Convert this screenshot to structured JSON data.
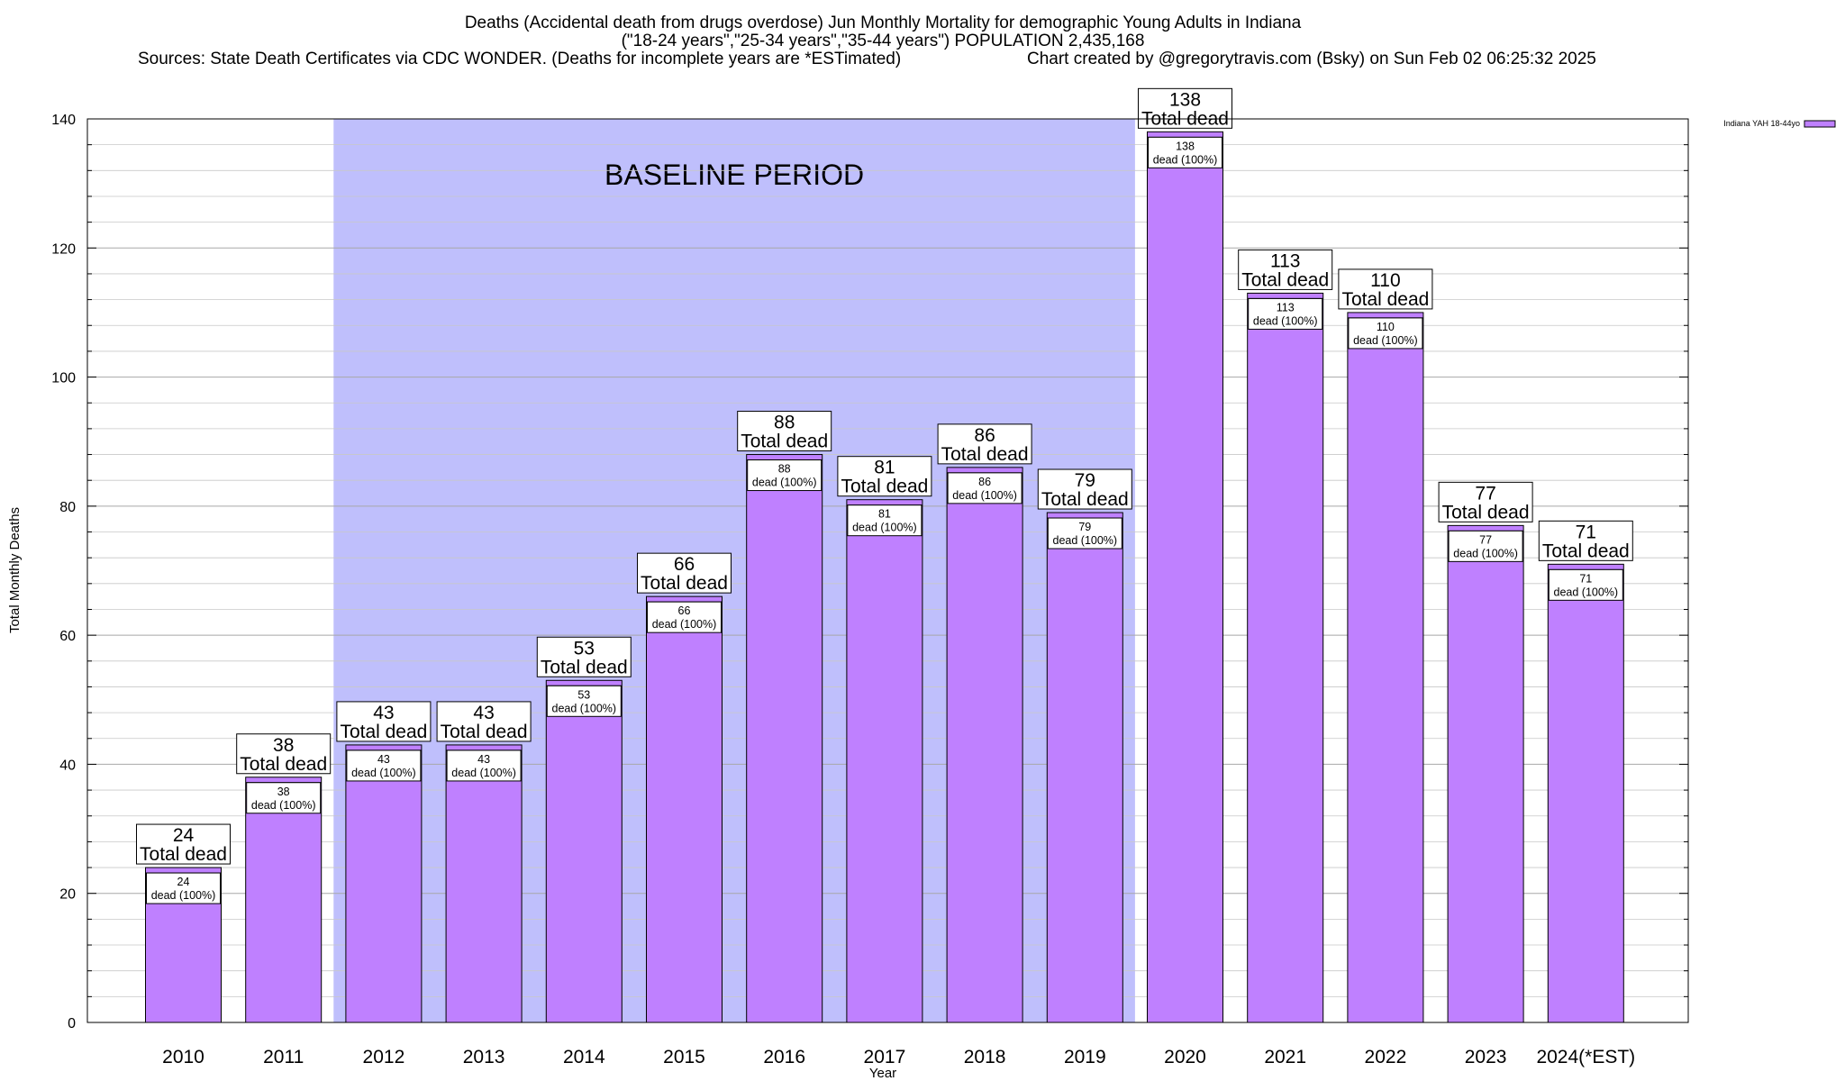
{
  "chart_data": {
    "type": "bar",
    "title_lines": [
      "Deaths (Accidental death from drugs overdose) Jun Monthly Mortality for demographic Young Adults in Indiana",
      "(\"18-24 years\",\"25-34 years\",\"35-44 years\") POPULATION 2,435,168"
    ],
    "source_text": "Sources: State Death Certificates via CDC WONDER. (Deaths for incomplete years are *ESTimated)",
    "credit_text": "Chart created by @gregorytravis.com (Bsky) on Sun Feb 02 06:25:32 2025",
    "xlabel": "Year",
    "ylabel": "Total Monthly Deaths",
    "ylim": [
      0,
      140
    ],
    "yticks": [
      0,
      20,
      40,
      60,
      80,
      100,
      120,
      140
    ],
    "categories": [
      "2010",
      "2011",
      "2012",
      "2013",
      "2014",
      "2015",
      "2016",
      "2017",
      "2018",
      "2019",
      "2020",
      "2021",
      "2022",
      "2023",
      "2024(*EST)"
    ],
    "series": [
      {
        "name": "Indiana YAH 18-44yo",
        "color": "#bf80ff",
        "values": [
          24,
          38,
          43,
          43,
          53,
          66,
          88,
          81,
          86,
          79,
          138,
          113,
          110,
          77,
          71
        ]
      }
    ],
    "total_label_suffix": "Total dead",
    "inner_label_suffix": "dead (100%)",
    "baseline": {
      "label": "BASELINE PERIOD",
      "start": "2012",
      "end": "2019",
      "color": "#bfbffc"
    },
    "grid": true,
    "legend_position": "top-right"
  }
}
